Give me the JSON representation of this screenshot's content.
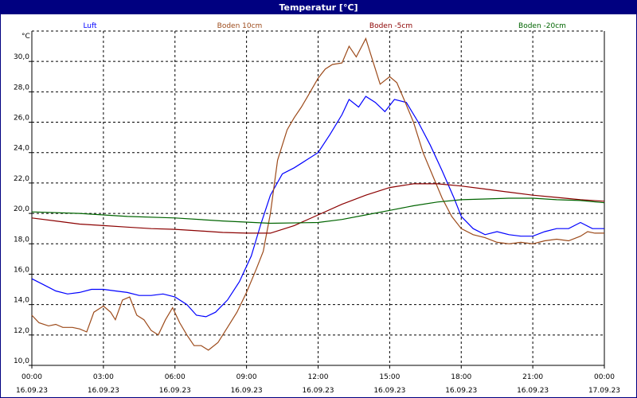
{
  "window": {
    "title": "Temperatur [°C]"
  },
  "chart_data": {
    "type": "line",
    "title": "Temperatur [°C]",
    "ylabel": "°C",
    "xlabel": "",
    "ylim": [
      10,
      32
    ],
    "yticks": [
      "10,0",
      "12,0",
      "14,0",
      "16,0",
      "18,0",
      "20,0",
      "22,0",
      "24,0",
      "26,0",
      "28,0",
      "30,0"
    ],
    "ytick_values": [
      10,
      12,
      14,
      16,
      18,
      20,
      22,
      24,
      26,
      28,
      30
    ],
    "xticks": [
      {
        "time": "00:00",
        "date": "16.09.23",
        "hour": 0
      },
      {
        "time": "03:00",
        "date": "16.09.23",
        "hour": 3
      },
      {
        "time": "06:00",
        "date": "16.09.23",
        "hour": 6
      },
      {
        "time": "09:00",
        "date": "16.09.23",
        "hour": 9
      },
      {
        "time": "12:00",
        "date": "16.09.23",
        "hour": 12
      },
      {
        "time": "15:00",
        "date": "16.09.23",
        "hour": 15
      },
      {
        "time": "18:00",
        "date": "16.09.23",
        "hour": 18
      },
      {
        "time": "21:00",
        "date": "16.09.23",
        "hour": 21
      },
      {
        "time": "00:00",
        "date": "17.09.23",
        "hour": 24
      }
    ],
    "xlim": [
      0,
      24
    ],
    "grid": true,
    "legend_position": "top",
    "series": [
      {
        "name": "Luft",
        "color": "#0000ff",
        "points": [
          [
            0,
            15.7
          ],
          [
            0.5,
            15.3
          ],
          [
            1,
            14.9
          ],
          [
            1.5,
            14.7
          ],
          [
            2,
            14.8
          ],
          [
            2.5,
            15.0
          ],
          [
            3,
            15.0
          ],
          [
            3.5,
            14.9
          ],
          [
            4,
            14.8
          ],
          [
            4.5,
            14.6
          ],
          [
            5,
            14.6
          ],
          [
            5.5,
            14.7
          ],
          [
            6,
            14.5
          ],
          [
            6.5,
            14.0
          ],
          [
            6.9,
            13.3
          ],
          [
            7.3,
            13.2
          ],
          [
            7.7,
            13.5
          ],
          [
            8.2,
            14.3
          ],
          [
            8.7,
            15.5
          ],
          [
            9.2,
            17.2
          ],
          [
            9.6,
            19.3
          ],
          [
            10,
            21.2
          ],
          [
            10.5,
            22.6
          ],
          [
            11,
            23.0
          ],
          [
            11.5,
            23.5
          ],
          [
            12,
            24.0
          ],
          [
            12.5,
            25.2
          ],
          [
            13,
            26.5
          ],
          [
            13.3,
            27.5
          ],
          [
            13.7,
            27.0
          ],
          [
            14,
            27.7
          ],
          [
            14.4,
            27.3
          ],
          [
            14.8,
            26.7
          ],
          [
            15.2,
            27.5
          ],
          [
            15.7,
            27.3
          ],
          [
            16.2,
            26.0
          ],
          [
            16.7,
            24.5
          ],
          [
            17.2,
            22.8
          ],
          [
            17.7,
            21.0
          ],
          [
            18,
            19.8
          ],
          [
            18.5,
            19.0
          ],
          [
            19,
            18.6
          ],
          [
            19.5,
            18.8
          ],
          [
            20,
            18.6
          ],
          [
            20.5,
            18.5
          ],
          [
            21,
            18.5
          ],
          [
            21.5,
            18.8
          ],
          [
            22,
            19.0
          ],
          [
            22.5,
            19.0
          ],
          [
            23,
            19.4
          ],
          [
            23.5,
            19.0
          ],
          [
            24,
            19.0
          ]
        ]
      },
      {
        "name": "Boden 10cm",
        "color": "#9c4a1a",
        "points": [
          [
            0,
            13.3
          ],
          [
            0.3,
            12.8
          ],
          [
            0.7,
            12.6
          ],
          [
            1,
            12.7
          ],
          [
            1.3,
            12.5
          ],
          [
            1.7,
            12.5
          ],
          [
            2,
            12.4
          ],
          [
            2.3,
            12.2
          ],
          [
            2.6,
            13.5
          ],
          [
            3,
            13.9
          ],
          [
            3.3,
            13.5
          ],
          [
            3.5,
            13.0
          ],
          [
            3.8,
            14.3
          ],
          [
            4.1,
            14.5
          ],
          [
            4.4,
            13.3
          ],
          [
            4.7,
            13.0
          ],
          [
            5,
            12.3
          ],
          [
            5.3,
            12.0
          ],
          [
            5.6,
            13.0
          ],
          [
            5.9,
            13.8
          ],
          [
            6.2,
            12.8
          ],
          [
            6.5,
            12.0
          ],
          [
            6.8,
            11.3
          ],
          [
            7.1,
            11.3
          ],
          [
            7.4,
            11.0
          ],
          [
            7.8,
            11.5
          ],
          [
            8.2,
            12.5
          ],
          [
            8.6,
            13.5
          ],
          [
            9,
            14.8
          ],
          [
            9.4,
            16.3
          ],
          [
            9.7,
            17.5
          ],
          [
            10,
            20.0
          ],
          [
            10.3,
            23.5
          ],
          [
            10.7,
            25.5
          ],
          [
            11,
            26.3
          ],
          [
            11.3,
            27.0
          ],
          [
            11.6,
            27.8
          ],
          [
            12,
            28.9
          ],
          [
            12.3,
            29.5
          ],
          [
            12.6,
            29.8
          ],
          [
            13,
            29.9
          ],
          [
            13.3,
            31.0
          ],
          [
            13.6,
            30.3
          ],
          [
            14,
            31.5
          ],
          [
            14.3,
            30.0
          ],
          [
            14.6,
            28.5
          ],
          [
            15,
            29.0
          ],
          [
            15.3,
            28.6
          ],
          [
            15.6,
            27.5
          ],
          [
            16,
            26.0
          ],
          [
            16.4,
            24.0
          ],
          [
            16.8,
            22.5
          ],
          [
            17.2,
            21.0
          ],
          [
            17.6,
            19.8
          ],
          [
            18,
            19.0
          ],
          [
            18.5,
            18.6
          ],
          [
            19,
            18.4
          ],
          [
            19.5,
            18.1
          ],
          [
            20,
            18.0
          ],
          [
            20.5,
            18.1
          ],
          [
            21,
            18.0
          ],
          [
            21.5,
            18.2
          ],
          [
            22,
            18.3
          ],
          [
            22.5,
            18.2
          ],
          [
            23,
            18.5
          ],
          [
            23.3,
            18.8
          ],
          [
            23.6,
            18.7
          ],
          [
            24,
            18.7
          ]
        ]
      },
      {
        "name": "Boden -5cm",
        "color": "#8b0000",
        "points": [
          [
            0,
            19.7
          ],
          [
            1,
            19.5
          ],
          [
            2,
            19.3
          ],
          [
            3,
            19.2
          ],
          [
            4,
            19.1
          ],
          [
            5,
            19.0
          ],
          [
            6,
            18.95
          ],
          [
            7,
            18.85
          ],
          [
            8,
            18.75
          ],
          [
            9,
            18.7
          ],
          [
            10,
            18.7
          ],
          [
            11,
            19.2
          ],
          [
            12,
            19.9
          ],
          [
            13,
            20.6
          ],
          [
            14,
            21.2
          ],
          [
            15,
            21.7
          ],
          [
            16,
            21.95
          ],
          [
            17,
            21.95
          ],
          [
            18,
            21.8
          ],
          [
            19,
            21.6
          ],
          [
            20,
            21.4
          ],
          [
            21,
            21.2
          ],
          [
            22,
            21.05
          ],
          [
            23,
            20.9
          ],
          [
            24,
            20.8
          ]
        ]
      },
      {
        "name": "Boden -20cm",
        "color": "#006400",
        "points": [
          [
            0,
            20.1
          ],
          [
            2,
            20.0
          ],
          [
            3,
            19.9
          ],
          [
            4,
            19.8
          ],
          [
            6,
            19.7
          ],
          [
            8,
            19.5
          ],
          [
            10,
            19.35
          ],
          [
            12,
            19.4
          ],
          [
            13,
            19.6
          ],
          [
            14,
            19.9
          ],
          [
            15,
            20.2
          ],
          [
            16,
            20.5
          ],
          [
            17,
            20.75
          ],
          [
            18,
            20.9
          ],
          [
            19,
            20.95
          ],
          [
            20,
            21.0
          ],
          [
            21,
            21.0
          ],
          [
            22,
            20.9
          ],
          [
            23,
            20.85
          ],
          [
            24,
            20.7
          ]
        ]
      }
    ]
  }
}
